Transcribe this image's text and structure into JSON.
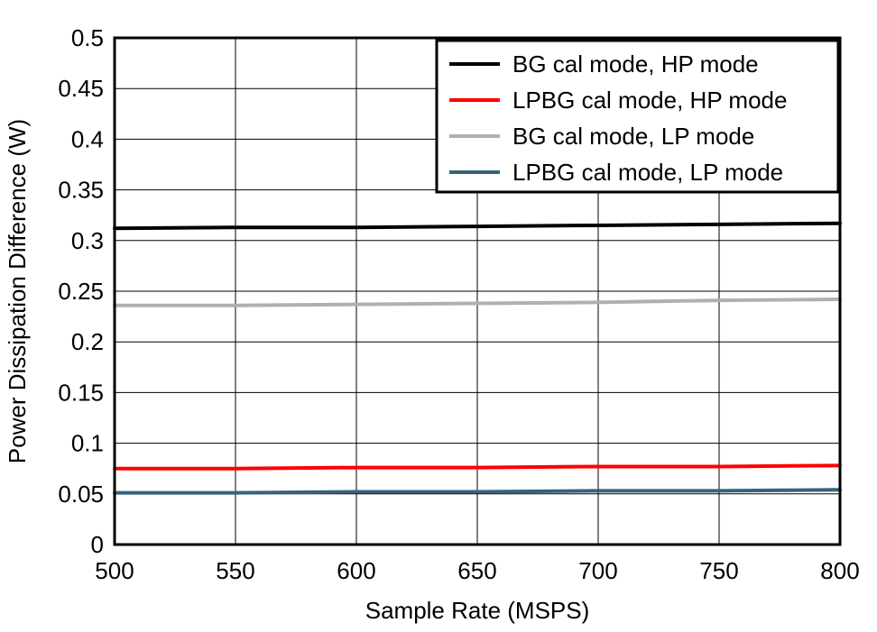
{
  "chart_data": {
    "type": "line",
    "title": "",
    "xlabel": "Sample Rate (MSPS)",
    "ylabel": "Power Dissipation Difference (W)",
    "xlim": [
      500,
      800
    ],
    "ylim": [
      0,
      0.5
    ],
    "grid": true,
    "legend_position": "top-right",
    "x": [
      500,
      550,
      600,
      650,
      700,
      750,
      800
    ],
    "x_ticks": [
      500,
      550,
      600,
      650,
      700,
      750,
      800
    ],
    "y_ticks": [
      0,
      0.05,
      0.1,
      0.15,
      0.2,
      0.25,
      0.3,
      0.35,
      0.4,
      0.45,
      0.5
    ],
    "y_tick_labels": [
      "0",
      "0.05",
      "0.1",
      "0.15",
      "0.2",
      "0.25",
      "0.3",
      "0.35",
      "0.4",
      "0.45",
      "0.5"
    ],
    "axis_color": "#000000",
    "grid_color": "#000000",
    "series": [
      {
        "name": "BG cal mode, HP mode",
        "color": "#000000",
        "values": [
          0.312,
          0.313,
          0.313,
          0.314,
          0.315,
          0.316,
          0.317
        ]
      },
      {
        "name": "LPBG cal mode, HP mode",
        "color": "#FF0000",
        "values": [
          0.075,
          0.075,
          0.076,
          0.076,
          0.077,
          0.077,
          0.078
        ]
      },
      {
        "name": "BG cal mode, LP mode",
        "color": "#B0B0B0",
        "values": [
          0.236,
          0.236,
          0.237,
          0.238,
          0.239,
          0.241,
          0.242
        ]
      },
      {
        "name": "LPBG cal mode, LP mode",
        "color": "#36637B",
        "values": [
          0.051,
          0.051,
          0.052,
          0.052,
          0.053,
          0.053,
          0.054
        ]
      }
    ]
  }
}
